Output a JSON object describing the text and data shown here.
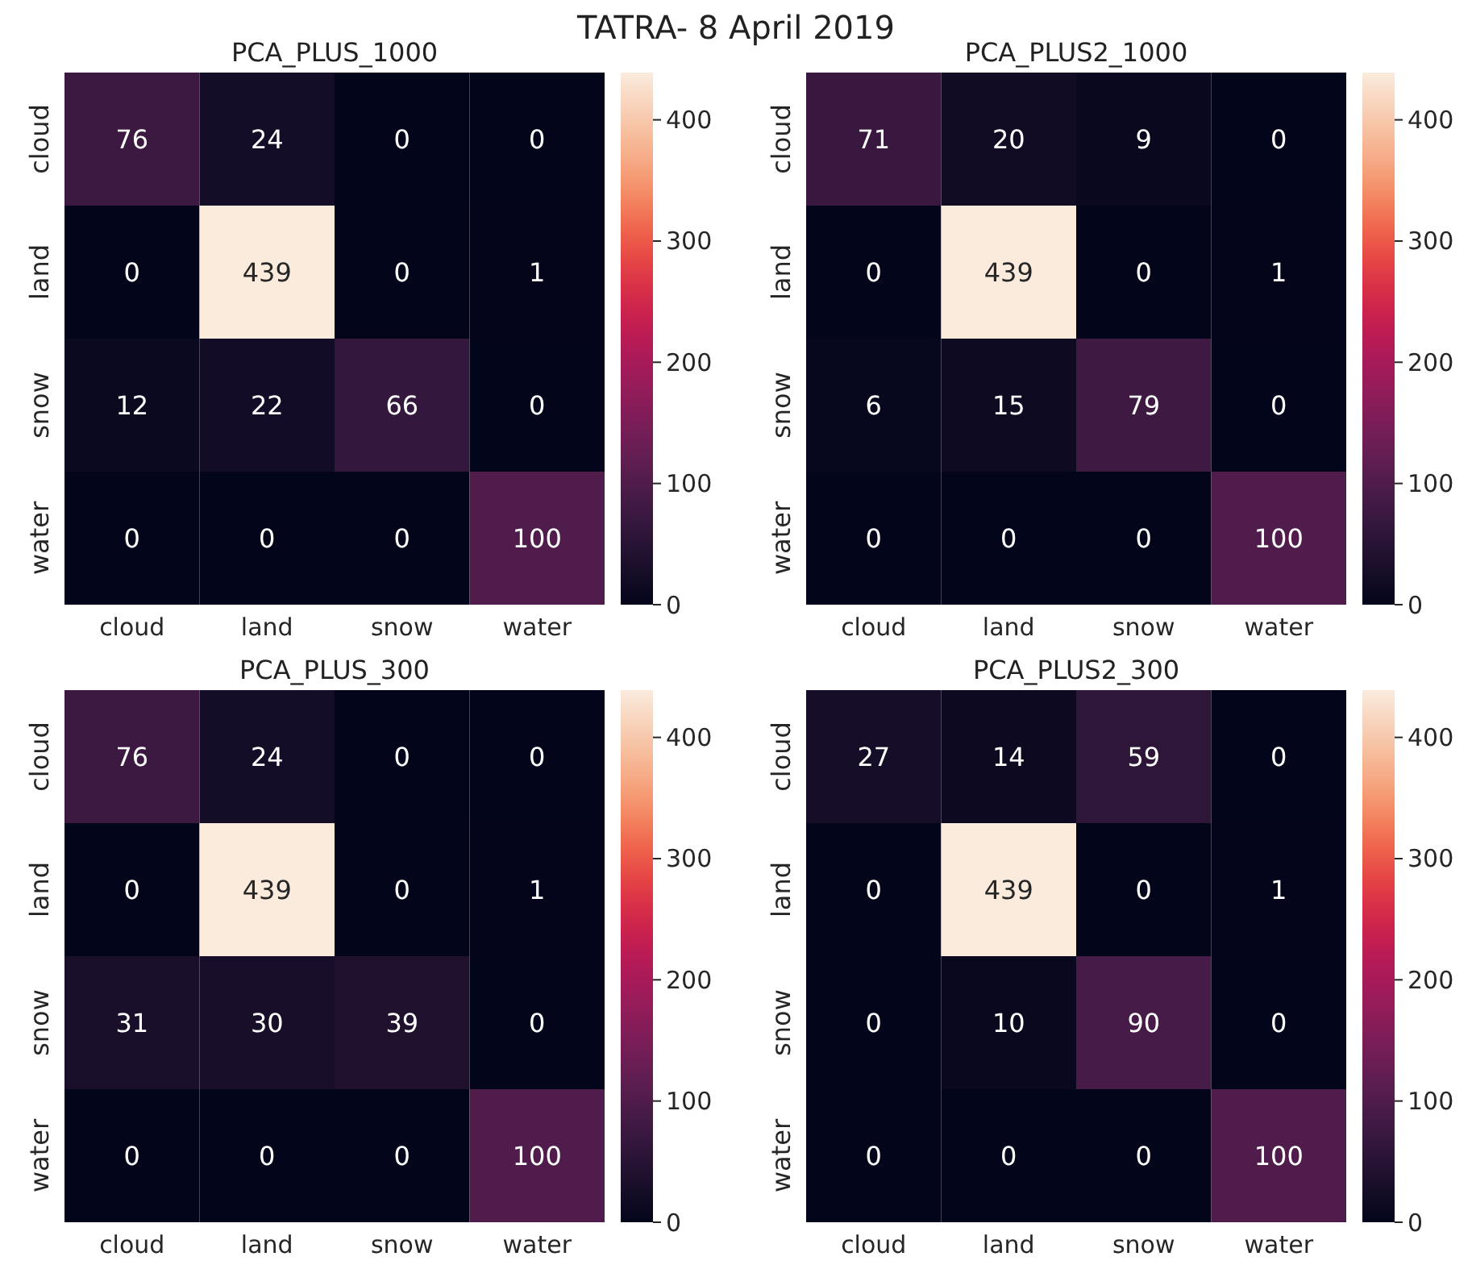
{
  "chart_data": [
    {
      "type": "other",
      "title": "TATRA- 8 April 2019"
    },
    {
      "type": "heatmap",
      "title": "PCA_PLUS_1000",
      "categories": [
        "cloud",
        "land",
        "snow",
        "water"
      ],
      "y_categories": [
        "cloud",
        "land",
        "snow",
        "water"
      ],
      "cells": [
        [
          76,
          24,
          0,
          0
        ],
        [
          0,
          439,
          0,
          1
        ],
        [
          12,
          22,
          66,
          0
        ],
        [
          0,
          0,
          0,
          100
        ]
      ],
      "data_labels": true,
      "clim": [
        0,
        439
      ],
      "cticks": [
        0,
        100,
        200,
        300,
        400
      ]
    },
    {
      "type": "heatmap",
      "title": "PCA_PLUS2_1000",
      "categories": [
        "cloud",
        "land",
        "snow",
        "water"
      ],
      "y_categories": [
        "cloud",
        "land",
        "snow",
        "water"
      ],
      "cells": [
        [
          71,
          20,
          9,
          0
        ],
        [
          0,
          439,
          0,
          1
        ],
        [
          6,
          15,
          79,
          0
        ],
        [
          0,
          0,
          0,
          100
        ]
      ],
      "data_labels": true,
      "clim": [
        0,
        439
      ],
      "cticks": [
        0,
        100,
        200,
        300,
        400
      ]
    },
    {
      "type": "heatmap",
      "title": "PCA_PLUS_300",
      "categories": [
        "cloud",
        "land",
        "snow",
        "water"
      ],
      "y_categories": [
        "cloud",
        "land",
        "snow",
        "water"
      ],
      "cells": [
        [
          76,
          24,
          0,
          0
        ],
        [
          0,
          439,
          0,
          1
        ],
        [
          31,
          30,
          39,
          0
        ],
        [
          0,
          0,
          0,
          100
        ]
      ],
      "data_labels": true,
      "clim": [
        0,
        439
      ],
      "cticks": [
        0,
        100,
        200,
        300,
        400
      ]
    },
    {
      "type": "heatmap",
      "title": "PCA_PLUS2_300",
      "categories": [
        "cloud",
        "land",
        "snow",
        "water"
      ],
      "y_categories": [
        "cloud",
        "land",
        "snow",
        "water"
      ],
      "cells": [
        [
          27,
          14,
          59,
          0
        ],
        [
          0,
          439,
          0,
          1
        ],
        [
          0,
          10,
          90,
          0
        ],
        [
          0,
          0,
          0,
          100
        ]
      ],
      "data_labels": true,
      "clim": [
        0,
        439
      ],
      "cticks": [
        0,
        100,
        200,
        300,
        400
      ]
    }
  ]
}
